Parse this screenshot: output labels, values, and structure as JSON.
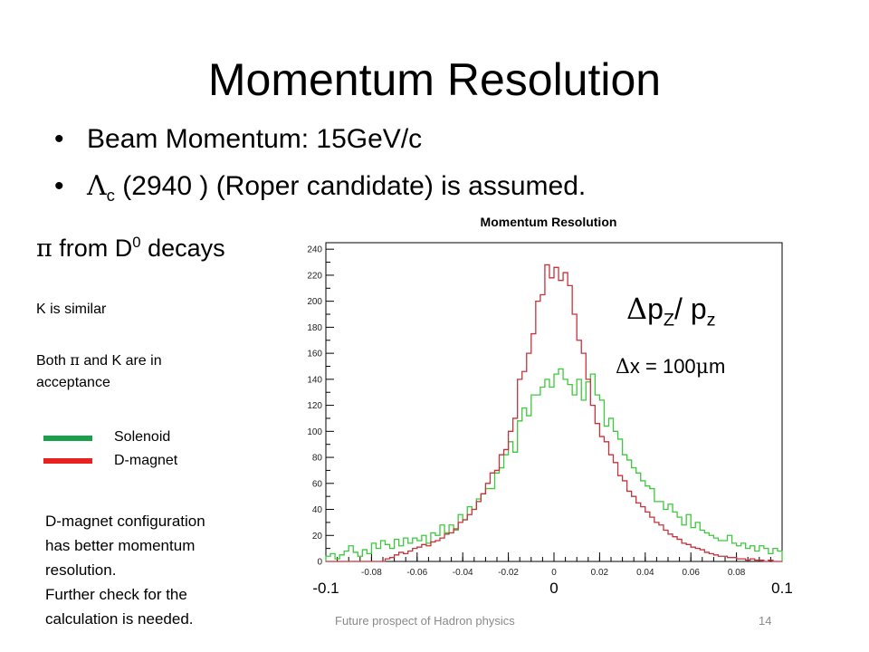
{
  "slide": {
    "title": "Momentum Resolution",
    "bullets": [
      {
        "text": "Beam Momentum: 15GeV/c"
      },
      {
        "symbol": "Λ",
        "sub": "c",
        "text": " (2940 ) (Roper candidate) is assumed."
      }
    ],
    "left_title": {
      "symbol": "π",
      "text": " from D",
      "sup": "0",
      "text2": " decays"
    },
    "notes": {
      "similar": "K is similar",
      "acceptance_1": "Both ",
      "acceptance_sym": "π",
      "acceptance_2": " and K are in",
      "acceptance_3": "acceptance"
    },
    "legend": [
      {
        "label": "Solenoid",
        "color": "#1aa04a"
      },
      {
        "label": "D-magnet",
        "color": "#e8201e"
      }
    ],
    "conclusion": [
      "D-magnet configuration",
      "has better momentum",
      "resolution.",
      "Further check for the",
      "calculation is needed."
    ],
    "footer": "Future prospect of Hadron physics",
    "page_number": "14",
    "annotation": {
      "delta": "Δ",
      "p1": "p",
      "sub1": "Z",
      "sep": "/ p",
      "sub2": "z",
      "res_delta": "Δ",
      "res_text": "x = 100",
      "res_mu": "μ",
      "res_unit": "m"
    }
  },
  "chart_data": {
    "type": "histogram",
    "title": "Momentum Resolution",
    "xlim": [
      -0.1,
      0.1
    ],
    "ylim": [
      0,
      245
    ],
    "bins": 100,
    "xticks": [
      "-0.08",
      "-0.06",
      "-0.04",
      "-0.02",
      "0",
      "0.02",
      "0.04",
      "0.06",
      "0.08"
    ],
    "yticks": [
      "0",
      "20",
      "40",
      "60",
      "80",
      "100",
      "120",
      "140",
      "160",
      "180",
      "200",
      "220",
      "240"
    ],
    "big_xticks": [
      "-0.1",
      "0",
      "0.1"
    ],
    "series": [
      {
        "name": "D-magnet",
        "color": "#c8323a",
        "values": [
          0,
          0,
          0,
          0,
          0,
          0,
          0,
          0,
          0,
          0,
          0,
          0,
          0,
          2,
          3,
          5,
          7,
          6,
          8,
          10,
          11,
          13,
          12,
          15,
          16,
          18,
          21,
          22,
          25,
          30,
          32,
          36,
          40,
          46,
          52,
          60,
          68,
          70,
          82,
          86,
          100,
          110,
          140,
          146,
          160,
          175,
          200,
          205,
          228,
          218,
          226,
          216,
          222,
          212,
          190,
          170,
          160,
          140,
          120,
          106,
          96,
          92,
          82,
          76,
          66,
          62,
          54,
          50,
          45,
          42,
          38,
          34,
          30,
          28,
          24,
          21,
          19,
          17,
          14,
          13,
          11,
          10,
          9,
          7,
          6,
          5,
          4,
          4,
          3,
          3,
          2,
          2,
          1,
          2,
          1,
          1,
          0,
          1,
          0,
          0
        ]
      },
      {
        "name": "Solenoid",
        "color": "#3dc83d",
        "values": [
          4,
          6,
          2,
          5,
          8,
          12,
          7,
          4,
          9,
          6,
          14,
          10,
          16,
          13,
          10,
          17,
          12,
          18,
          14,
          18,
          16,
          20,
          14,
          22,
          20,
          28,
          22,
          28,
          24,
          36,
          32,
          42,
          40,
          48,
          52,
          56,
          56,
          68,
          72,
          82,
          92,
          84,
          108,
          118,
          112,
          128,
          128,
          134,
          140,
          134,
          144,
          148,
          140,
          136,
          128,
          140,
          124,
          138,
          144,
          128,
          124,
          104,
          110,
          100,
          94,
          82,
          78,
          72,
          68,
          62,
          58,
          56,
          46,
          46,
          40,
          44,
          38,
          34,
          28,
          36,
          26,
          30,
          24,
          22,
          20,
          18,
          16,
          16,
          20,
          14,
          12,
          14,
          10,
          12,
          8,
          12,
          10,
          6,
          10,
          8
        ]
      }
    ]
  }
}
